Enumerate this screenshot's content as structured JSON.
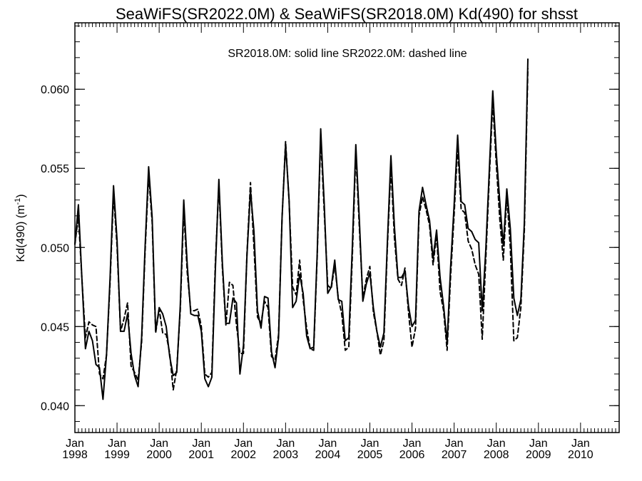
{
  "chart_data": {
    "type": "line",
    "title": "SeaWiFS(SR2022.0M) & SeaWiFS(SR2018.0M)  Kd(490) for shsst",
    "annotation": "SR2018.0M: solid line   SR2022.0M: dashed line",
    "ylabel": "Kd(490) (m",
    "ylabel_sup": "-1",
    "ylabel_end": ")",
    "ylim": [
      0.0383,
      0.0642
    ],
    "xlim": [
      "1998-01",
      "2010-12"
    ],
    "y_ticks": [
      "0.040",
      "0.045",
      "0.050",
      "0.055",
      "0.060"
    ],
    "x_ticks": [
      {
        "month": "Jan",
        "year": "1998"
      },
      {
        "month": "Jan",
        "year": "1999"
      },
      {
        "month": "Jan",
        "year": "2000"
      },
      {
        "month": "Jan",
        "year": "2001"
      },
      {
        "month": "Jan",
        "year": "2002"
      },
      {
        "month": "Jan",
        "year": "2003"
      },
      {
        "month": "Jan",
        "year": "2004"
      },
      {
        "month": "Jan",
        "year": "2005"
      },
      {
        "month": "Jan",
        "year": "2006"
      },
      {
        "month": "Jan",
        "year": "2007"
      },
      {
        "month": "Jan",
        "year": "2008"
      },
      {
        "month": "Jan",
        "year": "2009"
      },
      {
        "month": "Jan",
        "year": "2010"
      }
    ],
    "x_start": "1998-01",
    "series": [
      {
        "name": "SR2018.0M",
        "style": "solid",
        "color": "#000000",
        "values": [
          0.0502,
          0.0527,
          0.048,
          0.0436,
          0.0447,
          0.0441,
          0.0426,
          0.0424,
          0.0404,
          0.0432,
          0.048,
          0.0539,
          0.0505,
          0.0447,
          0.0447,
          0.0458,
          0.0433,
          0.0419,
          0.0412,
          0.0443,
          0.0501,
          0.0551,
          0.0519,
          0.0447,
          0.0462,
          0.0458,
          0.045,
          0.0431,
          0.0419,
          0.0421,
          0.0463,
          0.053,
          0.0489,
          0.0458,
          0.0457,
          0.0457,
          0.0447,
          0.0417,
          0.0412,
          0.0418,
          0.0486,
          0.0543,
          0.049,
          0.0452,
          0.0452,
          0.0468,
          0.0465,
          0.042,
          0.0438,
          0.0495,
          0.0536,
          0.051,
          0.046,
          0.0449,
          0.0469,
          0.0468,
          0.0434,
          0.0424,
          0.0443,
          0.0519,
          0.0565,
          0.053,
          0.0462,
          0.0466,
          0.0483,
          0.0471,
          0.0444,
          0.0436,
          0.0437,
          0.0496,
          0.0575,
          0.0528,
          0.0471,
          0.0475,
          0.0492,
          0.0467,
          0.0466,
          0.0441,
          0.0443,
          0.05,
          0.0565,
          0.0518,
          0.0466,
          0.0477,
          0.0484,
          0.0462,
          0.0447,
          0.0437,
          0.0446,
          0.0504,
          0.0558,
          0.0513,
          0.0481,
          0.0481,
          0.0485,
          0.0463,
          0.045,
          0.0454,
          0.0523,
          0.0538,
          0.0527,
          0.0517,
          0.0493,
          0.0511,
          0.0481,
          0.0463,
          0.044,
          0.0488,
          0.0527,
          0.0571,
          0.0529,
          0.0527,
          0.0512,
          0.051,
          0.0505,
          0.0503,
          0.046,
          0.0498,
          0.0548,
          0.0599,
          0.056,
          0.0529,
          0.0501,
          0.0537,
          0.0512,
          0.0468,
          0.0457,
          0.0467,
          0.0516,
          0.0619
        ]
      },
      {
        "name": "SR2022.0M",
        "style": "dashed",
        "color": "#000000",
        "values": [
          0.0502,
          0.052,
          0.048,
          0.0443,
          0.0453,
          0.0451,
          0.045,
          0.042,
          0.0417,
          0.0432,
          0.0477,
          0.0534,
          0.0501,
          0.0447,
          0.0455,
          0.0465,
          0.0425,
          0.0421,
          0.0416,
          0.044,
          0.0498,
          0.0546,
          0.0516,
          0.0446,
          0.0461,
          0.0446,
          0.0445,
          0.0433,
          0.041,
          0.0423,
          0.046,
          0.0524,
          0.0484,
          0.046,
          0.046,
          0.0461,
          0.045,
          0.042,
          0.0418,
          0.0421,
          0.049,
          0.054,
          0.0487,
          0.0451,
          0.0478,
          0.0476,
          0.0451,
          0.0433,
          0.0433,
          0.0496,
          0.0541,
          0.05,
          0.0456,
          0.0452,
          0.0466,
          0.0462,
          0.0431,
          0.0429,
          0.0445,
          0.0519,
          0.0567,
          0.0529,
          0.0475,
          0.047,
          0.0492,
          0.0467,
          0.0449,
          0.0436,
          0.0435,
          0.0494,
          0.057,
          0.0523,
          0.0476,
          0.0474,
          0.0489,
          0.0468,
          0.0458,
          0.0435,
          0.0437,
          0.0494,
          0.056,
          0.0513,
          0.0468,
          0.048,
          0.0488,
          0.0459,
          0.0447,
          0.0432,
          0.0441,
          0.0501,
          0.0551,
          0.0506,
          0.048,
          0.0476,
          0.0487,
          0.0459,
          0.0437,
          0.0449,
          0.052,
          0.0532,
          0.0524,
          0.0514,
          0.0489,
          0.0508,
          0.0472,
          0.046,
          0.0435,
          0.0482,
          0.0521,
          0.0564,
          0.0524,
          0.0522,
          0.0504,
          0.0499,
          0.0489,
          0.0483,
          0.0442,
          0.0492,
          0.0543,
          0.0592,
          0.0553,
          0.0518,
          0.0492,
          0.0533,
          0.05,
          0.0441,
          0.0443,
          0.0462,
          0.0511,
          0.0613
        ]
      }
    ]
  }
}
